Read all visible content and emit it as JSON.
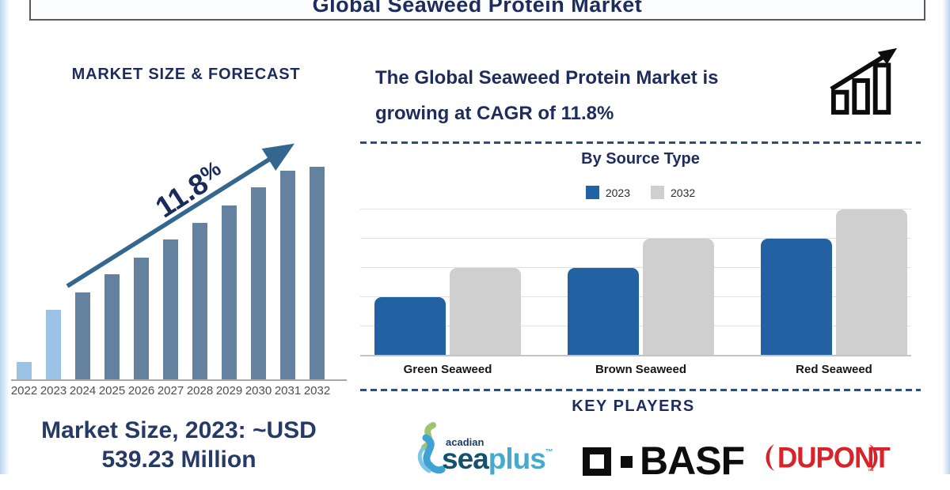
{
  "title": "Global Seaweed Protein Market",
  "left_panel": {
    "heading": "MARKET SIZE & FORECAST",
    "cagr_value": "11.8",
    "cagr_percent": "%",
    "market_size_line1": "Market Size, 2023: ~USD",
    "market_size_line2": "539.23 Million"
  },
  "right_panel": {
    "headline_line1": "The Global Seaweed Protein Market is",
    "headline_line2": "growing at CAGR of 11.8%",
    "source_chart_title": "By Source Type",
    "key_players_heading": "KEY PLAYERS",
    "key_players": [
      {
        "name": "Acadian SeaPlus",
        "logo_text_prefix": "acadian",
        "logo_text_main": "sea",
        "logo_text_accent": "plus",
        "trademark": "™"
      },
      {
        "name": "BASF",
        "logo_text": "BASF"
      },
      {
        "name": "DuPont",
        "logo_text": "DUPONT",
        "trademark": "™"
      }
    ]
  },
  "colors": {
    "navy_text": "#1d2c5c",
    "steel_bar": "#64829f",
    "light_blue_bar": "#9cc2e5",
    "trend_arrow": "#33678f",
    "blue_2023": "#2262a2",
    "gray_2032": "#cfcfcf",
    "dupont_red": "#d8232a",
    "basf_black": "#0d0d0d",
    "seaplus_dark_teal": "#15506f",
    "seaplus_light_teal": "#45aacd"
  },
  "chart_data": [
    {
      "type": "bar",
      "title": "MARKET SIZE & FORECAST",
      "categories": [
        "2022",
        "2023",
        "2024",
        "2025",
        "2026",
        "2027",
        "2028",
        "2029",
        "2030",
        "2031",
        "2032"
      ],
      "values": [
        22,
        88,
        110,
        133,
        154,
        177,
        198,
        220,
        243,
        264,
        269
      ],
      "values_note": "relative bar heights in px; chart has no y-axis labels, growth annotated as 11.8% CAGR",
      "annotation": "11.8%",
      "bar_color": "#64829f",
      "highlight_color": "#9cc2e5",
      "highlight_categories": [
        "2022",
        "2023"
      ],
      "xlabel": "",
      "ylabel": "",
      "grid": false
    },
    {
      "type": "bar",
      "title": "By Source Type",
      "categories": [
        "Green Seaweed",
        "Brown Seaweed",
        "Red Seaweed"
      ],
      "series": [
        {
          "name": "2023",
          "color": "#2262a2",
          "values": [
            2,
            3,
            4
          ]
        },
        {
          "name": "2032",
          "color": "#cfcfcf",
          "values": [
            3,
            4,
            5
          ]
        }
      ],
      "values_note": "relative values estimated from unlabeled gridlines (1 unit = 1 gridline interval)",
      "ylim": [
        0,
        5.4
      ],
      "grid": true,
      "legend_position": "top"
    }
  ]
}
